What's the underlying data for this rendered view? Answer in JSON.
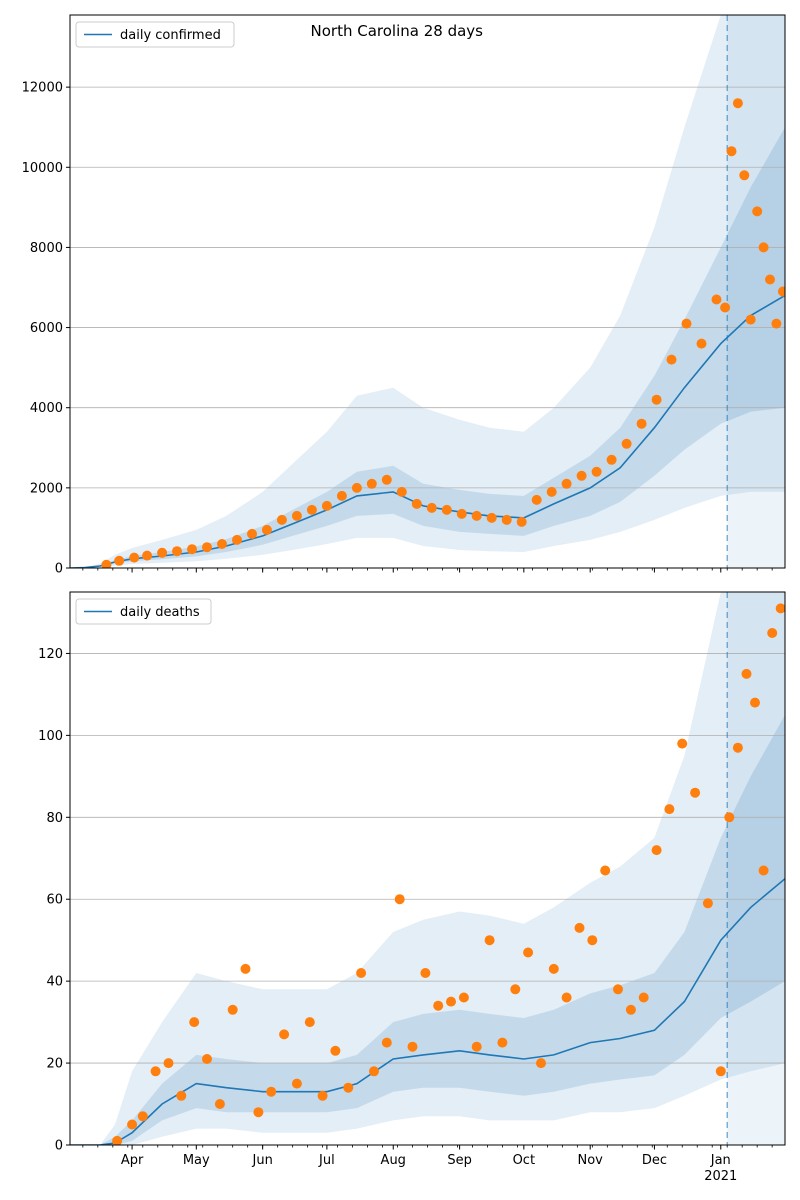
{
  "chart_data": [
    {
      "type": "line",
      "title": "North Carolina 28 days",
      "legend": {
        "label": "daily confirmed",
        "placement": "top-left"
      },
      "xlabel": "",
      "ylabel": "",
      "ylim": [
        0,
        13800
      ],
      "yticks": [
        0,
        2000,
        4000,
        6000,
        8000,
        10000,
        12000
      ],
      "grid": "horizontal",
      "x_range": [
        "2020-03-03",
        "2021-01-31"
      ],
      "x_tick_labels": [
        {
          "date": "2020-04-01",
          "label": "Apr"
        },
        {
          "date": "2020-05-01",
          "label": "May"
        },
        {
          "date": "2020-06-01",
          "label": "Jun"
        },
        {
          "date": "2020-07-01",
          "label": "Jul"
        },
        {
          "date": "2020-08-01",
          "label": "Aug"
        },
        {
          "date": "2020-09-01",
          "label": "Sep"
        },
        {
          "date": "2020-10-01",
          "label": "Oct"
        },
        {
          "date": "2020-11-01",
          "label": "Nov"
        },
        {
          "date": "2020-12-01",
          "label": "Dec"
        },
        {
          "date": "2021-01-01",
          "label": "Jan"
        }
      ],
      "year_label": "2021",
      "forecast_start": "2021-01-04",
      "colors": {
        "line": "#1f77b4",
        "points": "#ff7f0e",
        "band": "#1f77b4"
      },
      "trend": {
        "x": [
          "2020-03-03",
          "2020-03-10",
          "2020-03-17",
          "2020-03-24",
          "2020-04-01",
          "2020-04-15",
          "2020-05-01",
          "2020-05-15",
          "2020-06-01",
          "2020-06-15",
          "2020-07-01",
          "2020-07-15",
          "2020-08-01",
          "2020-08-15",
          "2020-09-01",
          "2020-09-15",
          "2020-10-01",
          "2020-10-15",
          "2020-11-01",
          "2020-11-15",
          "2020-12-01",
          "2020-12-15",
          "2021-01-01",
          "2021-01-15",
          "2021-01-31"
        ],
        "y": [
          0,
          10,
          50,
          150,
          230,
          300,
          400,
          550,
          800,
          1100,
          1450,
          1800,
          1900,
          1550,
          1400,
          1300,
          1250,
          1600,
          2000,
          2500,
          3500,
          4500,
          5600,
          6300,
          6800
        ],
        "band_inner": [
          [
            0,
            0
          ],
          [
            5,
            15
          ],
          [
            35,
            70
          ],
          [
            110,
            200
          ],
          [
            170,
            300
          ],
          [
            220,
            400
          ],
          [
            290,
            540
          ],
          [
            400,
            720
          ],
          [
            580,
            1050
          ],
          [
            800,
            1450
          ],
          [
            1050,
            1900
          ],
          [
            1300,
            2400
          ],
          [
            1350,
            2550
          ],
          [
            1050,
            2100
          ],
          [
            900,
            1950
          ],
          [
            850,
            1850
          ],
          [
            800,
            1800
          ],
          [
            1050,
            2250
          ],
          [
            1300,
            2800
          ],
          [
            1650,
            3500
          ],
          [
            2300,
            4800
          ],
          [
            2950,
            6200
          ],
          [
            3600,
            8000
          ],
          [
            3900,
            9500
          ],
          [
            4000,
            11000
          ]
        ],
        "band_outer": [
          [
            0,
            0
          ],
          [
            2,
            25
          ],
          [
            20,
            110
          ],
          [
            60,
            330
          ],
          [
            100,
            500
          ],
          [
            130,
            700
          ],
          [
            170,
            950
          ],
          [
            230,
            1300
          ],
          [
            330,
            1900
          ],
          [
            450,
            2600
          ],
          [
            600,
            3400
          ],
          [
            750,
            4300
          ],
          [
            750,
            4500
          ],
          [
            550,
            4000
          ],
          [
            450,
            3700
          ],
          [
            420,
            3500
          ],
          [
            400,
            3400
          ],
          [
            550,
            4000
          ],
          [
            700,
            5000
          ],
          [
            900,
            6300
          ],
          [
            1200,
            8500
          ],
          [
            1500,
            11000
          ],
          [
            1800,
            13800
          ],
          [
            1900,
            13800
          ],
          [
            1900,
            13800
          ]
        ]
      },
      "points": {
        "dates": [
          "2020-03-20",
          "2020-03-26",
          "2020-04-02",
          "2020-04-08",
          "2020-04-15",
          "2020-04-22",
          "2020-04-29",
          "2020-05-06",
          "2020-05-13",
          "2020-05-20",
          "2020-05-27",
          "2020-06-03",
          "2020-06-10",
          "2020-06-17",
          "2020-06-24",
          "2020-07-01",
          "2020-07-08",
          "2020-07-15",
          "2020-07-22",
          "2020-07-29",
          "2020-08-05",
          "2020-08-12",
          "2020-08-19",
          "2020-08-26",
          "2020-09-02",
          "2020-09-09",
          "2020-09-16",
          "2020-09-23",
          "2020-09-30",
          "2020-10-07",
          "2020-10-14",
          "2020-10-21",
          "2020-10-28",
          "2020-11-04",
          "2020-11-11",
          "2020-11-18",
          "2020-11-25",
          "2020-12-02",
          "2020-12-09",
          "2020-12-16",
          "2020-12-23",
          "2020-12-30",
          "2021-01-03",
          "2021-01-06",
          "2021-01-09",
          "2021-01-12",
          "2021-01-15",
          "2021-01-18",
          "2021-01-21",
          "2021-01-24",
          "2021-01-27",
          "2021-01-30"
        ],
        "values": [
          80,
          180,
          260,
          310,
          380,
          420,
          470,
          520,
          600,
          700,
          850,
          950,
          1200,
          1300,
          1450,
          1550,
          1800,
          2000,
          2100,
          2200,
          1900,
          1600,
          1500,
          1450,
          1350,
          1300,
          1250,
          1200,
          1150,
          1700,
          1900,
          2100,
          2300,
          2400,
          2700,
          3100,
          3600,
          4200,
          5200,
          6100,
          5600,
          6700,
          6500,
          10400,
          11600,
          9800,
          6200,
          8900,
          8000,
          7200,
          6100,
          6900
        ]
      }
    },
    {
      "type": "line",
      "title": "",
      "legend": {
        "label": "daily deaths",
        "placement": "top-left"
      },
      "xlabel": "",
      "ylabel": "",
      "ylim": [
        0,
        135
      ],
      "yticks": [
        0,
        20,
        40,
        60,
        80,
        100,
        120
      ],
      "grid": "horizontal",
      "x_range": [
        "2020-03-03",
        "2021-01-31"
      ],
      "x_tick_labels": [
        {
          "date": "2020-04-01",
          "label": "Apr"
        },
        {
          "date": "2020-05-01",
          "label": "May"
        },
        {
          "date": "2020-06-01",
          "label": "Jun"
        },
        {
          "date": "2020-07-01",
          "label": "Jul"
        },
        {
          "date": "2020-08-01",
          "label": "Aug"
        },
        {
          "date": "2020-09-01",
          "label": "Sep"
        },
        {
          "date": "2020-10-01",
          "label": "Oct"
        },
        {
          "date": "2020-11-01",
          "label": "Nov"
        },
        {
          "date": "2020-12-01",
          "label": "Dec"
        },
        {
          "date": "2021-01-01",
          "label": "Jan"
        }
      ],
      "year_label": "2021",
      "forecast_start": "2021-01-04",
      "colors": {
        "line": "#1f77b4",
        "points": "#ff7f0e",
        "band": "#1f77b4"
      },
      "trend": {
        "x": [
          "2020-03-03",
          "2020-03-10",
          "2020-03-17",
          "2020-03-24",
          "2020-04-01",
          "2020-04-15",
          "2020-05-01",
          "2020-05-15",
          "2020-06-01",
          "2020-06-15",
          "2020-07-01",
          "2020-07-15",
          "2020-08-01",
          "2020-08-15",
          "2020-09-01",
          "2020-09-15",
          "2020-10-01",
          "2020-10-15",
          "2020-11-01",
          "2020-11-15",
          "2020-12-01",
          "2020-12-15",
          "2021-01-01",
          "2021-01-15",
          "2021-01-31"
        ],
        "y": [
          0,
          0,
          0,
          0.5,
          3,
          10,
          15,
          14,
          13,
          13,
          13,
          15,
          21,
          22,
          23,
          22,
          21,
          22,
          25,
          26,
          28,
          35,
          50,
          58,
          65
        ],
        "band_inner": [
          [
            0,
            0
          ],
          [
            0,
            0
          ],
          [
            0,
            0
          ],
          [
            0,
            2
          ],
          [
            1,
            6
          ],
          [
            6,
            15
          ],
          [
            9,
            22
          ],
          [
            8,
            21
          ],
          [
            8,
            20
          ],
          [
            8,
            20
          ],
          [
            8,
            20
          ],
          [
            9,
            22
          ],
          [
            13,
            30
          ],
          [
            14,
            32
          ],
          [
            14,
            33
          ],
          [
            13,
            32
          ],
          [
            12,
            31
          ],
          [
            13,
            33
          ],
          [
            15,
            37
          ],
          [
            16,
            39
          ],
          [
            17,
            42
          ],
          [
            22,
            52
          ],
          [
            31,
            75
          ],
          [
            35,
            90
          ],
          [
            40,
            105
          ]
        ],
        "band_outer": [
          [
            0,
            0
          ],
          [
            0,
            0
          ],
          [
            0,
            0
          ],
          [
            0,
            5
          ],
          [
            0,
            18
          ],
          [
            2,
            30
          ],
          [
            4,
            42
          ],
          [
            4,
            40
          ],
          [
            3,
            38
          ],
          [
            3,
            38
          ],
          [
            3,
            38
          ],
          [
            4,
            42
          ],
          [
            6,
            52
          ],
          [
            7,
            55
          ],
          [
            7,
            57
          ],
          [
            6,
            56
          ],
          [
            6,
            54
          ],
          [
            6,
            58
          ],
          [
            8,
            64
          ],
          [
            8,
            68
          ],
          [
            9,
            75
          ],
          [
            12,
            95
          ],
          [
            16,
            135
          ],
          [
            18,
            135
          ],
          [
            20,
            135
          ]
        ]
      },
      "points": {
        "dates": [
          "2020-03-25",
          "2020-04-01",
          "2020-04-06",
          "2020-04-12",
          "2020-04-18",
          "2020-04-24",
          "2020-04-30",
          "2020-05-06",
          "2020-05-12",
          "2020-05-18",
          "2020-05-24",
          "2020-05-30",
          "2020-06-05",
          "2020-06-11",
          "2020-06-17",
          "2020-06-23",
          "2020-06-29",
          "2020-07-05",
          "2020-07-11",
          "2020-07-17",
          "2020-07-23",
          "2020-07-29",
          "2020-08-04",
          "2020-08-10",
          "2020-08-16",
          "2020-08-22",
          "2020-08-28",
          "2020-09-03",
          "2020-09-09",
          "2020-09-15",
          "2020-09-21",
          "2020-09-27",
          "2020-10-03",
          "2020-10-09",
          "2020-10-15",
          "2020-10-21",
          "2020-10-27",
          "2020-11-02",
          "2020-11-08",
          "2020-11-14",
          "2020-11-20",
          "2020-11-26",
          "2020-12-02",
          "2020-12-08",
          "2020-12-14",
          "2020-12-20",
          "2020-12-26",
          "2021-01-01",
          "2021-01-05",
          "2021-01-09",
          "2021-01-13",
          "2021-01-17",
          "2021-01-21",
          "2021-01-25",
          "2021-01-29"
        ],
        "values": [
          1,
          5,
          7,
          18,
          20,
          12,
          30,
          21,
          10,
          33,
          43,
          8,
          13,
          27,
          15,
          30,
          12,
          23,
          14,
          42,
          18,
          25,
          60,
          24,
          42,
          34,
          35,
          36,
          24,
          50,
          25,
          38,
          47,
          20,
          43,
          36,
          53,
          50,
          67,
          38,
          33,
          36,
          72,
          82,
          98,
          86,
          59,
          18,
          80,
          97,
          115,
          108,
          67,
          125,
          131
        ]
      }
    }
  ]
}
